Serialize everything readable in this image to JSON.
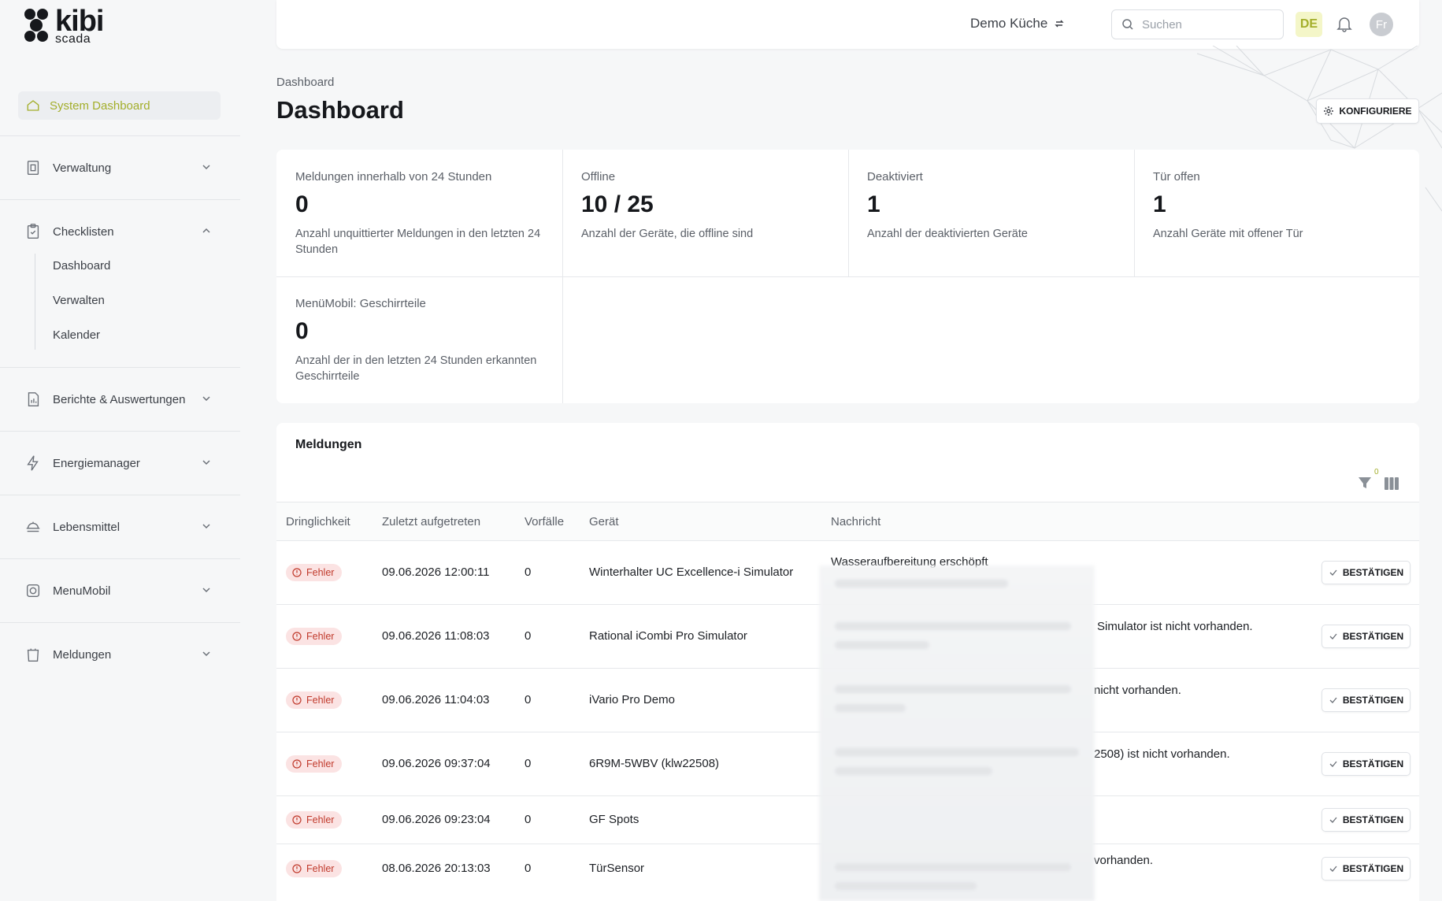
{
  "brand": {
    "name": "kibi",
    "sub": "scada"
  },
  "sidebar": {
    "active": "System Dashboard",
    "items": [
      {
        "label": "Verwaltung"
      },
      {
        "label": "Checklisten",
        "children": [
          "Dashboard",
          "Verwalten",
          "Kalender"
        ]
      },
      {
        "label": "Berichte & Auswertungen"
      },
      {
        "label": "Energiemanager"
      },
      {
        "label": "Lebensmittel"
      },
      {
        "label": "MenuMobil"
      },
      {
        "label": "Meldungen"
      }
    ]
  },
  "topbar": {
    "tenant": "Demo Küche",
    "search_placeholder": "Suchen",
    "lang": "DE",
    "avatar": "Fr"
  },
  "header": {
    "breadcrumb": "Dashboard",
    "title": "Dashboard",
    "configure": "KONFIGURIERE"
  },
  "stats": [
    {
      "label": "Meldungen innerhalb von 24 Stunden",
      "value": "0",
      "desc": "Anzahl unquittierter Meldungen in den letzten 24 Stunden"
    },
    {
      "label": "Offline",
      "value": "10 / 25",
      "desc": "Anzahl der Geräte, die offline sind"
    },
    {
      "label": "Deaktiviert",
      "value": "1",
      "desc": "Anzahl der deaktivierten Geräte"
    },
    {
      "label": "Tür offen",
      "value": "1",
      "desc": "Anzahl Geräte mit offener Tür"
    },
    {
      "label": "MenüMobil: Geschirrteile",
      "value": "0",
      "desc": "Anzahl der in den letzten 24 Stunden erkannten Geschirrteile"
    }
  ],
  "messages": {
    "title": "Meldungen",
    "filter_count": "0",
    "columns": [
      "Dringlichkeit",
      "Zuletzt aufgetreten",
      "Vorfälle",
      "Gerät",
      "Nachricht"
    ],
    "ack_label": "BESTÄTIGEN",
    "rows": [
      {
        "severity": "Fehler",
        "time": "09.06.2026 12:00:11",
        "count": "0",
        "device": "Winterhalter UC Excellence-i Simulator",
        "message": "Wasseraufbereitung erschöpft"
      },
      {
        "severity": "Fehler",
        "time": "09.06.2026 11:08:03",
        "count": "0",
        "device": "Rational iCombi Pro Simulator",
        "message": "Simulator ist nicht vorhanden."
      },
      {
        "severity": "Fehler",
        "time": "09.06.2026 11:04:03",
        "count": "0",
        "device": "iVario Pro Demo",
        "message": "nicht vorhanden."
      },
      {
        "severity": "Fehler",
        "time": "09.06.2026 09:37:04",
        "count": "0",
        "device": "6R9M-5WBV (klw22508)",
        "message": "2508) ist nicht vorhanden."
      },
      {
        "severity": "Fehler",
        "time": "09.06.2026 09:23:04",
        "count": "0",
        "device": "GF Spots",
        "message": ""
      },
      {
        "severity": "Fehler",
        "time": "08.06.2026 20:13:03",
        "count": "0",
        "device": "TürSensor",
        "message": "vorhanden."
      }
    ]
  },
  "colors": {
    "accent": "#a3ae2a",
    "error": "#c0392b",
    "error_bg": "#fbe3e3"
  }
}
